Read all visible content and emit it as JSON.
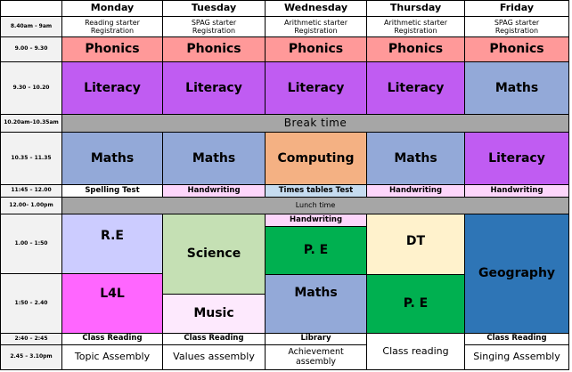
{
  "days": [
    "Monday",
    "Tuesday",
    "Wednesday",
    "Thursday",
    "Friday"
  ],
  "times": {
    "t1": "8.40am - 9am",
    "t2": "9.00 – 9.30",
    "t3": "9.30 – 10.20",
    "t4": "10.20am–10.35am",
    "t5": "10.35 – 11.35",
    "t6": "11:45 – 12.00",
    "t7": "12.00– 1.00pm",
    "t8": "1.00 – 1:50",
    "t9": "1:50 – 2.40",
    "t10": "2:40 – 2:45",
    "t11": "2.45 – 3.10pm"
  },
  "starters": {
    "mon": [
      "Reading starter",
      "Registration"
    ],
    "tue": [
      "SPAG starter",
      "Registration"
    ],
    "wed": [
      "Arithmetic starter",
      "Registration"
    ],
    "thu": [
      "Arithmetic starter",
      "Registration"
    ],
    "fri": [
      "SPAG starter",
      "Registration"
    ]
  },
  "subjects": {
    "phonics": "Phonics",
    "literacy": "Literacy",
    "maths": "Maths",
    "computing": "Computing",
    "re": "R.E",
    "l4l": "L4L",
    "science": "Science",
    "music": "Music",
    "pe": "P. E",
    "dt": "DT",
    "geography": "Geography"
  },
  "break_label": "Break time",
  "lunch_label": "Lunch time",
  "late_morning": {
    "mon": "Spelling Test",
    "tue": "Handwriting",
    "wed": "Times tables Test",
    "thu": "Handwriting",
    "fri": "Handwriting"
  },
  "wed_handwriting": "Handwriting",
  "short_slot": {
    "mon": "Class Reading",
    "tue": "Class Reading",
    "wed": "Library",
    "fri": "Class Reading"
  },
  "assemblies": {
    "mon": "Topic Assembly",
    "tue": "Values assembly",
    "wed": "Achievement assembly",
    "thu": "Class reading",
    "fri": "Singing Assembly"
  },
  "colors": {
    "phonics": "#ff9999",
    "literacy": "#c05cf2",
    "maths": "#93a9d8",
    "computing": "#f4b183",
    "break": "#a6a6a6",
    "handwriting": "#fdd6fb",
    "times_tables": "#c6dcf0",
    "re": "#ccccff",
    "l4l": "#ff66ff",
    "science": "#c5e0b4",
    "music": "#fde9fd",
    "pe": "#00b050",
    "dt": "#fff2cc",
    "geography": "#2e75b6"
  }
}
